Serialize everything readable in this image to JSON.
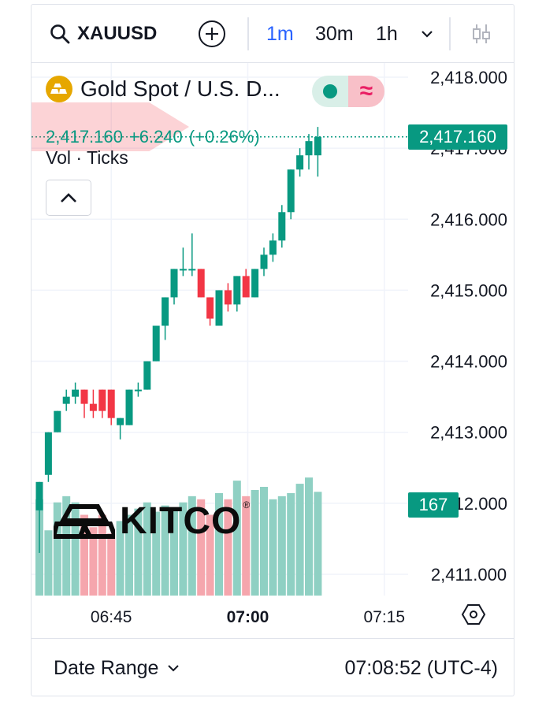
{
  "toolbar": {
    "symbol": "XAUUSD",
    "timeframes": [
      {
        "label": "1m",
        "active": true
      },
      {
        "label": "30m",
        "active": false
      },
      {
        "label": "1h",
        "active": false
      }
    ],
    "icons": [
      "search-icon",
      "add-icon",
      "chevron-down-icon",
      "indicators-icon"
    ]
  },
  "legend": {
    "title": "Gold Spot / U.S. D...",
    "last": "2,417.160",
    "change": "+6.240",
    "change_pct": "(+0.26%)",
    "toggle_icon": "≈",
    "volume_label": "Vol · Ticks"
  },
  "price_axis": {
    "labels": [
      "2,418.000",
      "2,417.000",
      "2,416.000",
      "2,415.000",
      "2,414.000",
      "2,413.000",
      "2,412.000",
      "2,411.000"
    ],
    "last_price_tag": "2,417.160",
    "volume_tag": "167"
  },
  "time_axis": {
    "labels": [
      "06:45",
      "07:00",
      "07:15"
    ]
  },
  "watermark": "KITCO",
  "footer": {
    "date_range": "Date Range",
    "clock": "07:08:52 (UTC-4)"
  },
  "colors": {
    "up": "#089981",
    "down": "#f23645",
    "vol_up": "#8fd0c3",
    "vol_down": "#f5a6ad",
    "accent": "#2962ff"
  },
  "chart_data": {
    "type": "candlestick",
    "interval": "1m",
    "ylim": [
      2410.7,
      2418.2
    ],
    "x_ticks": [
      "06:45",
      "07:00",
      "07:15"
    ],
    "candles": [
      {
        "o": 2411.9,
        "h": 2412.3,
        "l": 2411.3,
        "c": 2412.3,
        "v": 155
      },
      {
        "o": 2412.4,
        "h": 2413.0,
        "l": 2412.3,
        "c": 2413.0,
        "v": 105
      },
      {
        "o": 2413.0,
        "h": 2413.3,
        "l": 2413.0,
        "c": 2413.3,
        "v": 150
      },
      {
        "o": 2413.4,
        "h": 2413.6,
        "l": 2413.3,
        "c": 2413.5,
        "v": 160
      },
      {
        "o": 2413.5,
        "h": 2413.7,
        "l": 2413.4,
        "c": 2413.6,
        "v": 150
      },
      {
        "o": 2413.6,
        "h": 2413.6,
        "l": 2413.2,
        "c": 2413.4,
        "v": 130
      },
      {
        "o": 2413.4,
        "h": 2413.6,
        "l": 2413.2,
        "c": 2413.3,
        "v": 110
      },
      {
        "o": 2413.6,
        "h": 2413.6,
        "l": 2413.2,
        "c": 2413.3,
        "v": 130
      },
      {
        "o": 2413.6,
        "h": 2413.6,
        "l": 2413.1,
        "c": 2413.2,
        "v": 100
      },
      {
        "o": 2413.1,
        "h": 2413.2,
        "l": 2412.9,
        "c": 2413.2,
        "v": 120
      },
      {
        "o": 2413.1,
        "h": 2413.6,
        "l": 2413.1,
        "c": 2413.6,
        "v": 130
      },
      {
        "o": 2413.6,
        "h": 2413.7,
        "l": 2413.5,
        "c": 2413.6,
        "v": 140
      },
      {
        "o": 2413.6,
        "h": 2414.0,
        "l": 2413.6,
        "c": 2414.0,
        "v": 150
      },
      {
        "o": 2414.0,
        "h": 2414.5,
        "l": 2414.0,
        "c": 2414.5,
        "v": 135
      },
      {
        "o": 2414.5,
        "h": 2414.9,
        "l": 2414.3,
        "c": 2414.9,
        "v": 145
      },
      {
        "o": 2414.9,
        "h": 2415.3,
        "l": 2414.8,
        "c": 2415.3,
        "v": 140
      },
      {
        "o": 2415.3,
        "h": 2415.6,
        "l": 2415.2,
        "c": 2415.3,
        "v": 150
      },
      {
        "o": 2415.3,
        "h": 2415.8,
        "l": 2415.2,
        "c": 2415.3,
        "v": 160
      },
      {
        "o": 2415.3,
        "h": 2415.3,
        "l": 2414.9,
        "c": 2414.9,
        "v": 155
      },
      {
        "o": 2414.9,
        "h": 2414.9,
        "l": 2414.5,
        "c": 2414.6,
        "v": 130
      },
      {
        "o": 2414.5,
        "h": 2415.0,
        "l": 2414.5,
        "c": 2415.0,
        "v": 165
      },
      {
        "o": 2415.0,
        "h": 2415.1,
        "l": 2414.7,
        "c": 2414.8,
        "v": 155
      },
      {
        "o": 2414.8,
        "h": 2415.2,
        "l": 2414.7,
        "c": 2415.2,
        "v": 185
      },
      {
        "o": 2415.2,
        "h": 2415.3,
        "l": 2414.9,
        "c": 2414.9,
        "v": 160
      },
      {
        "o": 2414.9,
        "h": 2415.3,
        "l": 2414.9,
        "c": 2415.3,
        "v": 170
      },
      {
        "o": 2415.3,
        "h": 2415.6,
        "l": 2415.2,
        "c": 2415.5,
        "v": 175
      },
      {
        "o": 2415.5,
        "h": 2415.8,
        "l": 2415.4,
        "c": 2415.7,
        "v": 155
      },
      {
        "o": 2415.7,
        "h": 2416.2,
        "l": 2415.6,
        "c": 2416.1,
        "v": 160
      },
      {
        "o": 2416.1,
        "h": 2416.7,
        "l": 2416.0,
        "c": 2416.7,
        "v": 165
      },
      {
        "o": 2416.7,
        "h": 2417.0,
        "l": 2416.6,
        "c": 2416.9,
        "v": 180
      },
      {
        "o": 2416.9,
        "h": 2417.2,
        "l": 2416.7,
        "c": 2417.1,
        "v": 190
      },
      {
        "o": 2416.9,
        "h": 2417.3,
        "l": 2416.6,
        "c": 2417.16,
        "v": 167
      }
    ]
  }
}
